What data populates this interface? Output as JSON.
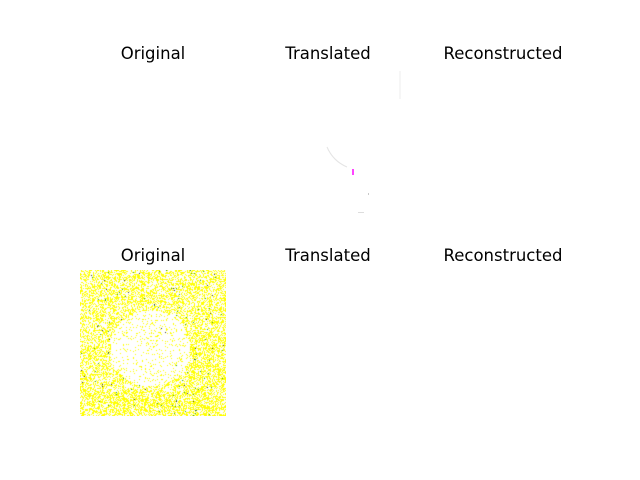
{
  "figure": {
    "rows": [
      {
        "panels": [
          {
            "title": "Original",
            "content": "blank"
          },
          {
            "title": "Translated",
            "content": "faint-traces"
          },
          {
            "title": "Reconstructed",
            "content": "blank"
          }
        ]
      },
      {
        "panels": [
          {
            "title": "Original",
            "content": "yellow-noise"
          },
          {
            "title": "Translated",
            "content": "blank"
          },
          {
            "title": "Reconstructed",
            "content": "blank"
          }
        ]
      }
    ],
    "colors": {
      "noise_yellow": "#ffff00",
      "noise_green": "#2ca02c",
      "noise_dark": "#333333",
      "trace_magenta": "#ff44ff",
      "trace_gray": "#d8d8d8",
      "background": "#ffffff"
    }
  }
}
